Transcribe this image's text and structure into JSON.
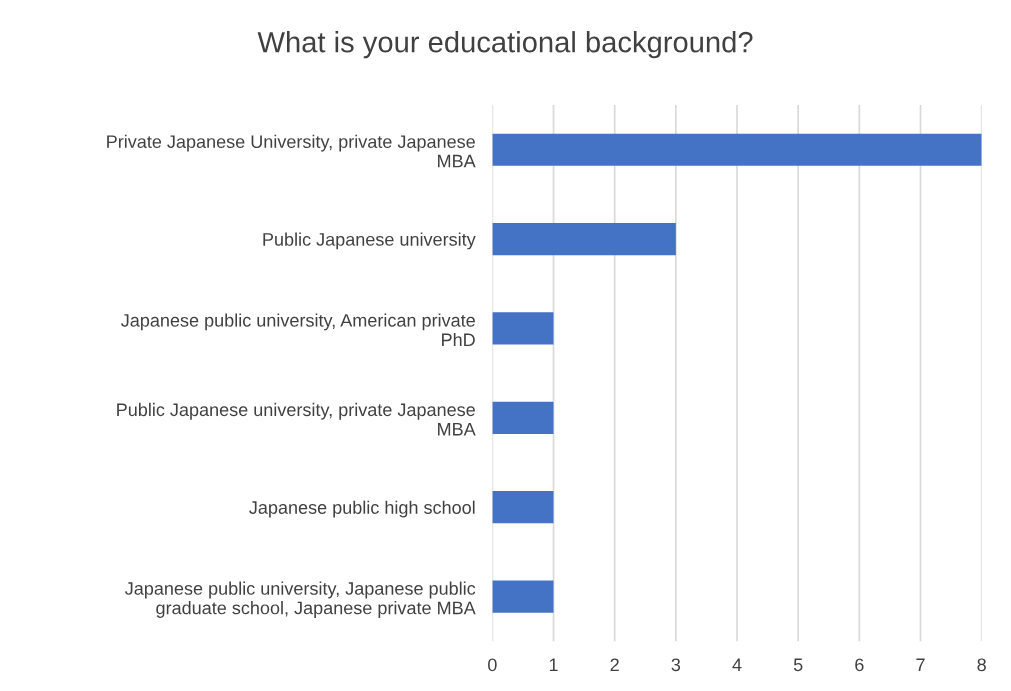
{
  "chart_data": {
    "type": "bar",
    "orientation": "horizontal",
    "title": "What is your educational background?",
    "categories": [
      "Private Japanese University, private Japanese MBA",
      "Public Japanese university",
      "Japanese public university, American private PhD",
      "Public Japanese university, private Japanese MBA",
      "Japanese public high school",
      "Japanese public university, Japanese public graduate school, Japanese private MBA"
    ],
    "values": [
      8,
      3,
      1,
      1,
      1,
      1
    ],
    "color": "#4472c4",
    "xlim": [
      0,
      8
    ],
    "xticks": [
      0,
      1,
      2,
      3,
      4,
      5,
      6,
      7,
      8
    ],
    "grid": "x",
    "legend": false
  }
}
